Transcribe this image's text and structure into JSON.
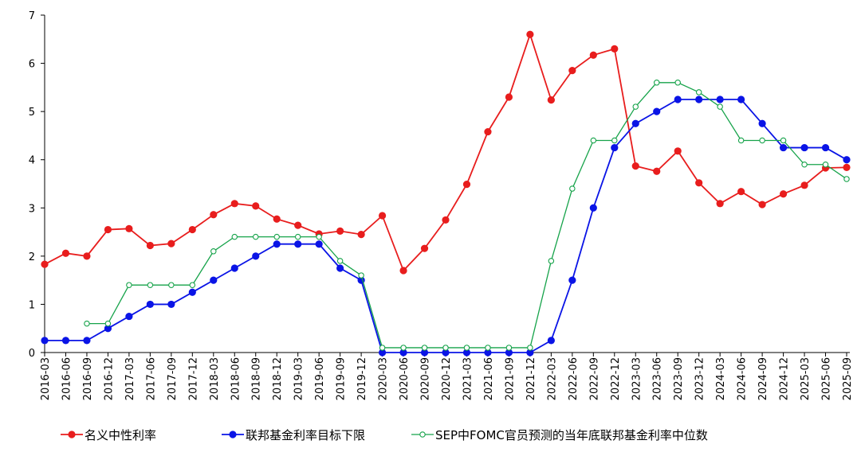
{
  "chart_data": {
    "type": "line",
    "title": "",
    "xlabel": "",
    "ylabel": "",
    "ylim": [
      0,
      7
    ],
    "yticks": [
      0,
      1,
      2,
      3,
      4,
      5,
      6,
      7
    ],
    "grid": false,
    "legend_position": "bottom",
    "categories": [
      "2016-03",
      "2016-06",
      "2016-09",
      "2016-12",
      "2017-03",
      "2017-06",
      "2017-09",
      "2017-12",
      "2018-03",
      "2018-06",
      "2018-09",
      "2018-12",
      "2019-03",
      "2019-06",
      "2019-09",
      "2019-12",
      "2020-03",
      "2020-06",
      "2020-09",
      "2020-12",
      "2021-03",
      "2021-06",
      "2021-09",
      "2021-12",
      "2022-03",
      "2022-06",
      "2022-09",
      "2022-12",
      "2023-03",
      "2023-06",
      "2023-09",
      "2023-12",
      "2024-03",
      "2024-06",
      "2024-09",
      "2024-12",
      "2025-03",
      "2025-06",
      "2025-09"
    ],
    "series": [
      {
        "name": "名义中性利率",
        "color": "#e81d1d",
        "marker": "filled",
        "values": [
          1.83,
          2.06,
          2.0,
          2.55,
          2.57,
          2.22,
          2.26,
          2.55,
          2.86,
          3.09,
          3.04,
          2.77,
          2.64,
          2.46,
          2.52,
          2.45,
          2.84,
          1.7,
          2.16,
          2.75,
          3.49,
          4.58,
          5.3,
          6.6,
          5.24,
          5.85,
          6.17,
          6.3,
          3.87,
          3.76,
          4.18,
          3.52,
          3.09,
          3.34,
          3.07,
          3.29,
          3.47,
          3.83,
          3.84
        ]
      },
      {
        "name": "联邦基金利率目标下限",
        "color": "#0a14e6",
        "marker": "filled",
        "values": [
          0.25,
          0.25,
          0.25,
          0.5,
          0.75,
          1.0,
          1.0,
          1.25,
          1.5,
          1.75,
          2.0,
          2.25,
          2.25,
          2.25,
          1.75,
          1.5,
          0.0,
          0.0,
          0.0,
          0.0,
          0.0,
          0.0,
          0.0,
          0.0,
          0.25,
          1.5,
          3.0,
          4.25,
          4.75,
          5.0,
          5.25,
          5.25,
          5.25,
          5.25,
          4.75,
          4.25,
          4.25,
          4.25,
          4.0
        ]
      },
      {
        "name": "SEP中FOMC官员预测的当年底联邦基金利率中位数",
        "color": "#16a34a",
        "marker": "hollow",
        "values": [
          null,
          null,
          0.6,
          0.6,
          1.4,
          1.4,
          1.4,
          1.4,
          2.1,
          2.4,
          2.4,
          2.4,
          2.4,
          2.4,
          1.9,
          1.6,
          0.1,
          0.1,
          0.1,
          0.1,
          0.1,
          0.1,
          0.1,
          0.1,
          1.9,
          3.4,
          4.4,
          4.4,
          5.1,
          5.6,
          5.6,
          5.4,
          5.1,
          4.4,
          4.4,
          4.4,
          3.9,
          3.9,
          3.6
        ]
      }
    ]
  }
}
